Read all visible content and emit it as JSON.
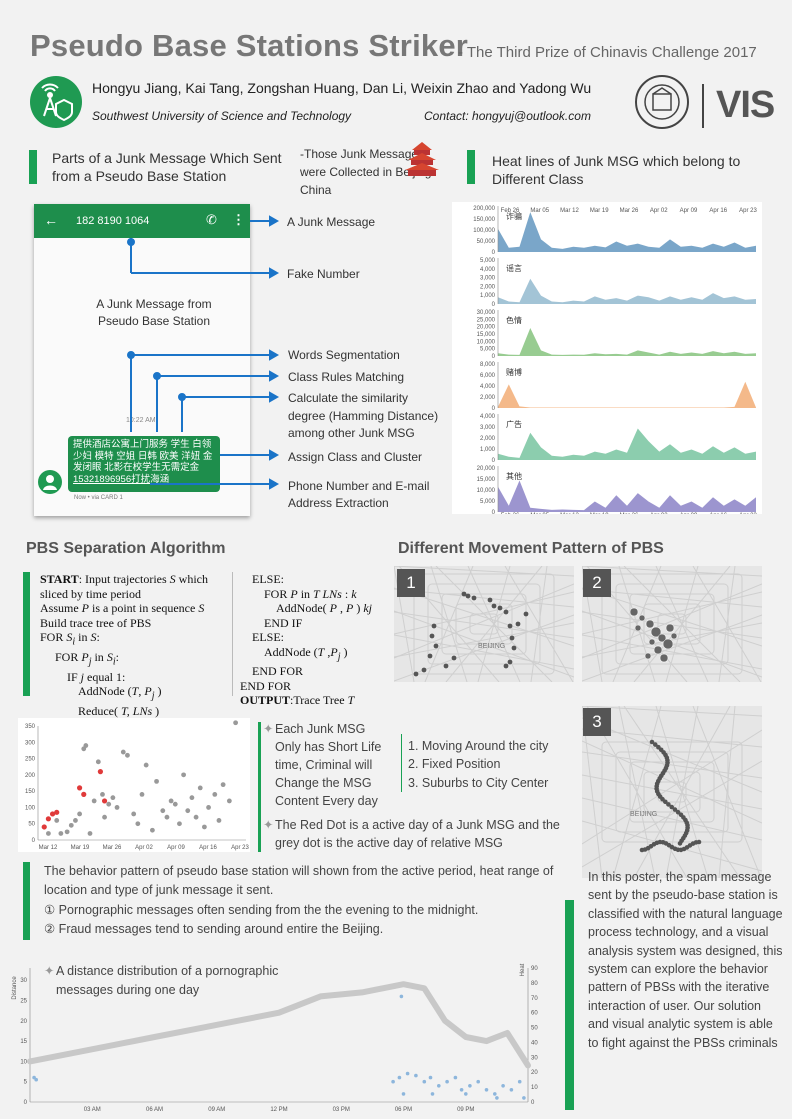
{
  "header": {
    "title": "Pseudo Base Stations Striker",
    "subtitle": "- The Third Prize of Chinavis Challenge 2017",
    "authors": "Hongyu Jiang, Kai Tang, Zongshan Huang, Dan Li, Weixin Zhao and Yadong Wu",
    "affiliation": "Southwest University of Science and Technology",
    "contact": "Contact: hongyuj@outlook.com",
    "vis_logo": "VIS"
  },
  "junk_section": {
    "heading": "Parts of a Junk Message Which Sent from a Pseudo Base Station",
    "note": "-Those Junk Messages were Collected in Beijing. China",
    "phone_number": "182 8190 1064",
    "caption": "A Junk Message from Pseudo Base Station",
    "time": "10:22 AM",
    "message_text": "提供酒店公寓上门服务 学生 白领 少妇 模特 空姐 日韩 欧美 洋妞 金发闭眼 北影在校学生无需定金",
    "message_phone": "15321896956打扰海涵",
    "footer": "Now • via CARD 1",
    "labels": [
      "A Junk Message",
      "Fake Number",
      "Words Segmentation",
      "Class Rules Matching",
      "Calculate the similarity degree (Hamming Distance) among other Junk MSG",
      "Assign Class and Cluster",
      "Phone Number and E-mail Address Extraction"
    ]
  },
  "heat_section": {
    "heading": "Heat lines of Junk MSG which belong to Different Class"
  },
  "pbs_section": {
    "heading": "PBS Separation Algorithm",
    "bullet1": "Each Junk MSG Only has Short Life time, Criminal will Change the MSG Content Every day",
    "bullet2": "The Red Dot is a active day of a Junk MSG and the grey dot is the active day of relative MSG",
    "behavior": "The behavior pattern of pseudo base station will shown from the active period, heat range of location and type of junk message it sent.",
    "point1": "① Pornographic messages often sending from the the evening to the midnight.",
    "point2": "② Fraud messages tend to sending around entire the Beijing.",
    "distance_note": "A distance distribution of a pornographic messages during one day"
  },
  "movement_section": {
    "heading": "Different Movement Pattern of PBS",
    "patterns": [
      "1. Moving Around the city",
      "2. Fixed Position",
      "3. Suburbs to City Center"
    ],
    "map_numbers": [
      "1",
      "2",
      "3"
    ],
    "map_label": "BEIJING",
    "summary": "In this poster, the spam message sent by the pseudo-base station is classified with the natural language process technology, and a visual analysis system was designed, this system can explore the behavior pattern of PBSs with the iterative interaction of user. Our solution and visual analytic system is able to fight against the PBSs criminals"
  },
  "chart_data": [
    {
      "type": "area",
      "title": "",
      "x_ticks": [
        "Feb 26",
        "Mar 05",
        "Mar 12",
        "Mar 19",
        "Mar 26",
        "Apr 02",
        "Apr 09",
        "Apr 16",
        "Apr 23"
      ],
      "series": [
        {
          "name": "诈骗",
          "color": "#7aa6c9",
          "yticks": [
            "200,000",
            "150,000",
            "100,000",
            "50,000",
            "0"
          ],
          "ymax": 200000,
          "values": [
            110000,
            20000,
            25000,
            190000,
            60000,
            20000,
            15000,
            25000,
            20000,
            30000,
            22000,
            50000,
            30000,
            40000,
            25000,
            20000,
            60000,
            25000,
            30000,
            20000,
            40000,
            25000,
            45000,
            20000,
            30000
          ]
        },
        {
          "name": "谣言",
          "color": "#a3c4d6",
          "yticks": [
            "5,000",
            "4,000",
            "3,000",
            "2,000",
            "1,000",
            "0"
          ],
          "ymax": 5000,
          "values": [
            800,
            300,
            200,
            3000,
            1000,
            300,
            200,
            400,
            300,
            900,
            500,
            700,
            400,
            1000,
            800,
            400,
            900,
            500,
            800,
            500,
            1300,
            700,
            900,
            500,
            600
          ]
        },
        {
          "name": "色情",
          "color": "#98cc91",
          "yticks": [
            "30,000",
            "25,000",
            "20,000",
            "15,000",
            "10,000",
            "5,000",
            "0"
          ],
          "ymax": 30000,
          "values": [
            2000,
            1000,
            800,
            20000,
            4000,
            1000,
            800,
            1000,
            900,
            2000,
            1200,
            1500,
            1000,
            4000,
            2500,
            1000,
            3000,
            1500,
            2500,
            1500,
            3500,
            2000,
            3000,
            1500,
            2000
          ]
        },
        {
          "name": "赌博",
          "color": "#f4b98a",
          "yticks": [
            "8,000",
            "6,000",
            "4,000",
            "2,000",
            "0"
          ],
          "ymax": 8000,
          "values": [
            200,
            4500,
            300,
            100,
            100,
            100,
            100,
            100,
            100,
            100,
            100,
            100,
            100,
            100,
            100,
            100,
            100,
            100,
            100,
            100,
            100,
            100,
            200,
            5000,
            100
          ]
        },
        {
          "name": "广告",
          "color": "#8ccdae",
          "yticks": [
            "4,000",
            "3,000",
            "2,000",
            "1,000",
            "0"
          ],
          "ymax": 4000,
          "values": [
            600,
            300,
            200,
            2600,
            1200,
            400,
            300,
            500,
            400,
            800,
            600,
            1000,
            700,
            3000,
            1800,
            800,
            1500,
            700,
            1000,
            600,
            1300,
            700,
            1200,
            600,
            800
          ]
        },
        {
          "name": "其他",
          "color": "#9c95cf",
          "yticks": [
            "20,000",
            "15,000",
            "10,000",
            "5,000",
            "0"
          ],
          "ymax": 20000,
          "values": [
            12000,
            3000,
            15000,
            2000,
            1500,
            1000,
            1200,
            1000,
            900,
            5000,
            2000,
            8000,
            3000,
            9000,
            5000,
            2000,
            8000,
            3000,
            5000,
            2000,
            7000,
            3000,
            6000,
            3000,
            7000
          ]
        }
      ]
    },
    {
      "type": "scatter",
      "title": "",
      "x_ticks": [
        "Mar 12",
        "Mar 19",
        "Mar 26",
        "Apr 02",
        "Apr 09",
        "Apr 16",
        "Apr 23"
      ],
      "y_ticks": [
        "0",
        "50",
        "100",
        "150",
        "200",
        "250",
        "300",
        "350"
      ],
      "ylim": [
        0,
        350
      ],
      "grey_points": [
        [
          0.05,
          20
        ],
        [
          0.09,
          60
        ],
        [
          0.11,
          20
        ],
        [
          0.14,
          25
        ],
        [
          0.16,
          45
        ],
        [
          0.18,
          60
        ],
        [
          0.2,
          80
        ],
        [
          0.22,
          280
        ],
        [
          0.23,
          290
        ],
        [
          0.25,
          20
        ],
        [
          0.27,
          120
        ],
        [
          0.29,
          240
        ],
        [
          0.31,
          140
        ],
        [
          0.32,
          70
        ],
        [
          0.34,
          110
        ],
        [
          0.36,
          130
        ],
        [
          0.38,
          100
        ],
        [
          0.41,
          270
        ],
        [
          0.43,
          260
        ],
        [
          0.46,
          80
        ],
        [
          0.48,
          50
        ],
        [
          0.5,
          140
        ],
        [
          0.52,
          230
        ],
        [
          0.55,
          30
        ],
        [
          0.57,
          180
        ],
        [
          0.6,
          90
        ],
        [
          0.62,
          70
        ],
        [
          0.64,
          120
        ],
        [
          0.66,
          110
        ],
        [
          0.68,
          50
        ],
        [
          0.7,
          200
        ],
        [
          0.72,
          90
        ],
        [
          0.74,
          130
        ],
        [
          0.76,
          70
        ],
        [
          0.78,
          160
        ],
        [
          0.8,
          40
        ],
        [
          0.82,
          100
        ],
        [
          0.85,
          140
        ],
        [
          0.87,
          60
        ],
        [
          0.89,
          170
        ],
        [
          0.92,
          120
        ],
        [
          0.95,
          360
        ]
      ],
      "red_points": [
        [
          0.03,
          40
        ],
        [
          0.05,
          65
        ],
        [
          0.07,
          80
        ],
        [
          0.09,
          85
        ],
        [
          0.2,
          160
        ],
        [
          0.22,
          140
        ],
        [
          0.3,
          210
        ],
        [
          0.32,
          120
        ]
      ]
    },
    {
      "type": "line",
      "title": "",
      "x_ticks": [
        "03 AM",
        "06 AM",
        "09 AM",
        "12 PM",
        "03 PM",
        "06 PM",
        "09 PM"
      ],
      "y_left_ticks": [
        "0",
        "5",
        "10",
        "15",
        "20",
        "25",
        "30"
      ],
      "y_right_ticks": [
        "0",
        "10",
        "20",
        "30",
        "40",
        "50",
        "60",
        "70",
        "80",
        "90"
      ],
      "ylabel": "Distance",
      "y2label": "Heat",
      "curve": [
        [
          0,
          10
        ],
        [
          2,
          12
        ],
        [
          4,
          14
        ],
        [
          6,
          16
        ],
        [
          8,
          18
        ],
        [
          10,
          20
        ],
        [
          12,
          22
        ],
        [
          14,
          26
        ],
        [
          16,
          27
        ],
        [
          17,
          28
        ],
        [
          18,
          29
        ],
        [
          19,
          28
        ],
        [
          20,
          20
        ],
        [
          21,
          16
        ],
        [
          22,
          15
        ],
        [
          23,
          17
        ],
        [
          24,
          9
        ]
      ]
    }
  ]
}
